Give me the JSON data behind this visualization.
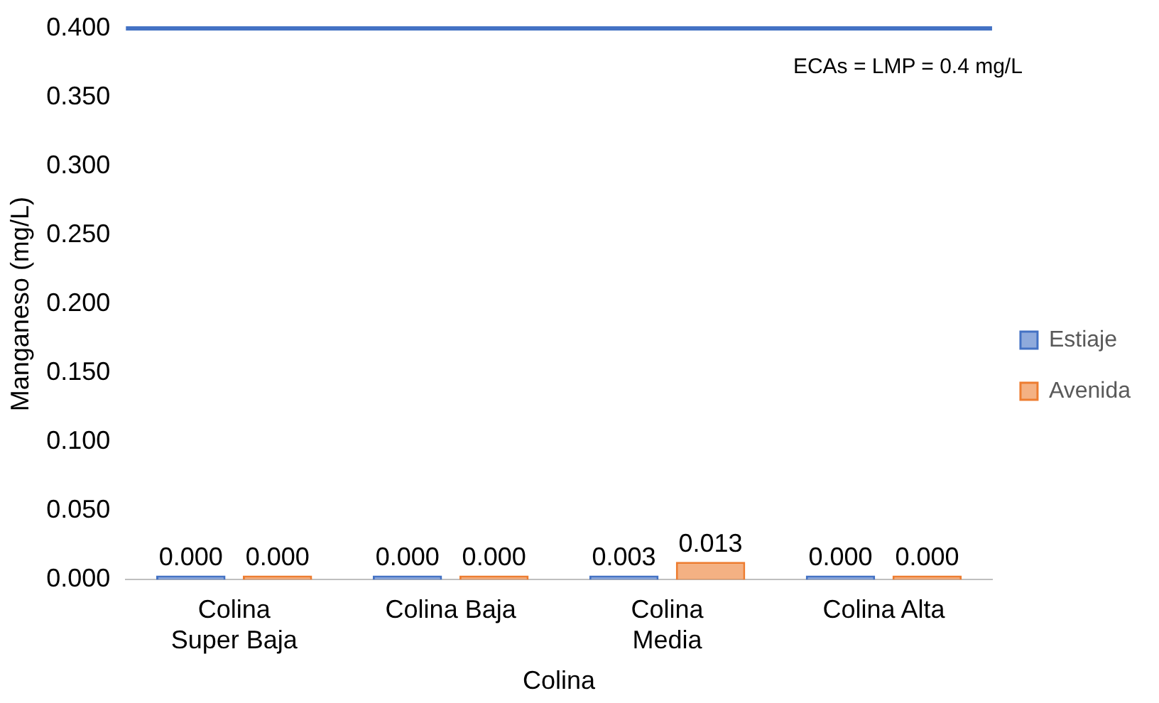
{
  "chart_data": {
    "type": "bar",
    "xlabel": "Colina",
    "ylabel": "Manganeso (mg/L)",
    "categories": [
      "Colina Super Baja",
      "Colina Baja",
      "Colina Media",
      "Colina Alta"
    ],
    "series": [
      {
        "name": "Estiaje",
        "color": "#4472c4",
        "values": [
          0,
          0,
          0.003,
          0
        ],
        "value_labels": [
          "0.000",
          "0.000",
          "0.003",
          "0.000"
        ]
      },
      {
        "name": "Avenida",
        "color": "#ed7d31",
        "values": [
          0,
          0,
          0.013,
          0
        ],
        "value_labels": [
          "0.000",
          "0.000",
          "0.013",
          "0.000"
        ]
      }
    ],
    "ylim": [
      0,
      0.4
    ],
    "yticks": [
      {
        "value": 0,
        "label": "0.000"
      },
      {
        "value": 0.05,
        "label": "0.050"
      },
      {
        "value": 0.1,
        "label": "0.100"
      },
      {
        "value": 0.15,
        "label": "0.150"
      },
      {
        "value": 0.2,
        "label": "0.200"
      },
      {
        "value": 0.25,
        "label": "0.250"
      },
      {
        "value": 0.3,
        "label": "0.300"
      },
      {
        "value": 0.35,
        "label": "0.350"
      },
      {
        "value": 0.4,
        "label": "0.400"
      }
    ],
    "ref_lines": [
      {
        "axis": "y",
        "value": 0.4,
        "label": "ECAs = LMP = 0.4 mg/L",
        "color": "#4472c4"
      }
    ],
    "grid": false,
    "legend": "right"
  }
}
